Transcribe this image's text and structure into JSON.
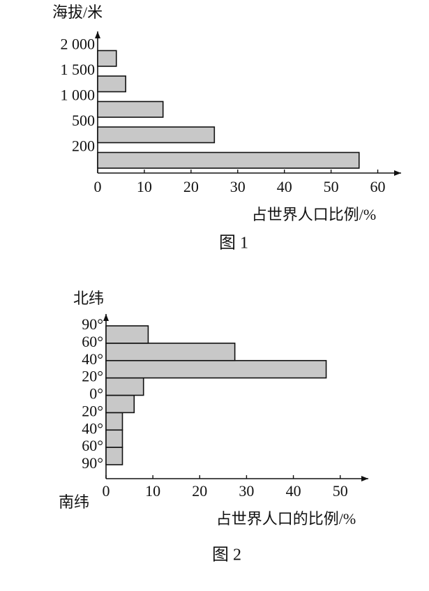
{
  "chart_data": [
    {
      "type": "histogram",
      "orientation": "horizontal",
      "y_label": "海拔/米",
      "x_label": "占世界人口比例/%",
      "caption": "图 1",
      "bin_labels": [
        null,
        "200",
        "500",
        "1 000",
        "1 500",
        "2 000"
      ],
      "values": [
        56,
        25,
        14,
        6,
        4
      ],
      "xlim": [
        0,
        65
      ],
      "xticks": [
        0,
        10,
        20,
        30,
        40,
        50,
        60
      ],
      "color": "#c8c8c8",
      "gap": true
    },
    {
      "type": "histogram",
      "orientation": "horizontal",
      "y_label": "北纬",
      "y_label_bottom": "南纬",
      "x_label": "占世界人口的比例/%",
      "caption": "图 2",
      "bin_labels": [
        "90°",
        "60°",
        "40°",
        "20°",
        "0°",
        "20°",
        "40°",
        "60°",
        "90°"
      ],
      "values": [
        3.5,
        3.5,
        3.5,
        6,
        8,
        47,
        27.5,
        9
      ],
      "xlim": [
        0,
        56
      ],
      "xticks": [
        0,
        10,
        20,
        30,
        40,
        50
      ],
      "color": "#c8c8c8",
      "gap": false
    }
  ]
}
